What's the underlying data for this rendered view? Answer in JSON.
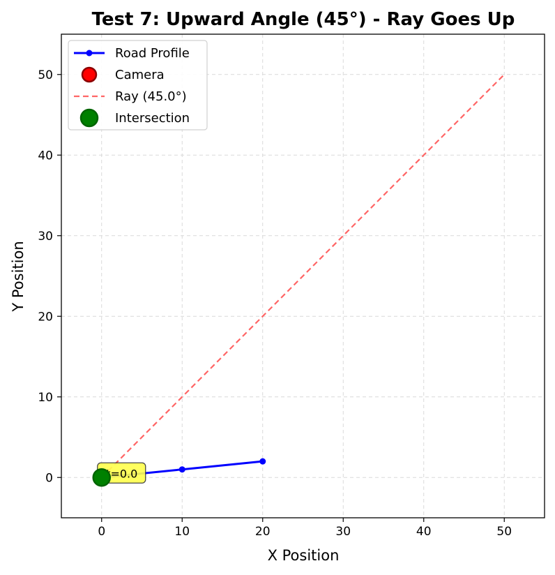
{
  "chart_data": {
    "type": "line",
    "title": "Test 7: Upward Angle (45°) - Ray Goes Up",
    "xlabel": "X Position",
    "ylabel": "Y Position",
    "xlim": [
      -5,
      55
    ],
    "ylim": [
      -5,
      55
    ],
    "x_ticks": [
      0,
      10,
      20,
      30,
      40,
      50
    ],
    "y_ticks": [
      0,
      10,
      20,
      30,
      40,
      50
    ],
    "grid": true,
    "legend_position": "upper-left",
    "series": [
      {
        "name": "Road Profile",
        "kind": "line-marker",
        "color": "#0000ff",
        "x": [
          0,
          10,
          20
        ],
        "y": [
          0,
          1,
          2
        ]
      },
      {
        "name": "Camera",
        "kind": "marker",
        "color": "#ff0000",
        "edge_color": "#8b0000",
        "x": [
          0
        ],
        "y": [
          0
        ]
      },
      {
        "name": "Ray (45.0°)",
        "kind": "dashed-line",
        "color": "#ff6666",
        "x": [
          0,
          50
        ],
        "y": [
          0,
          50
        ]
      },
      {
        "name": "Intersection",
        "kind": "marker",
        "color": "#008000",
        "edge_color": "#006400",
        "x": [
          0
        ],
        "y": [
          0
        ]
      }
    ],
    "annotation": {
      "text": "t=0.0",
      "x": 0,
      "y": 0,
      "box_color": "#ffff4d"
    }
  }
}
